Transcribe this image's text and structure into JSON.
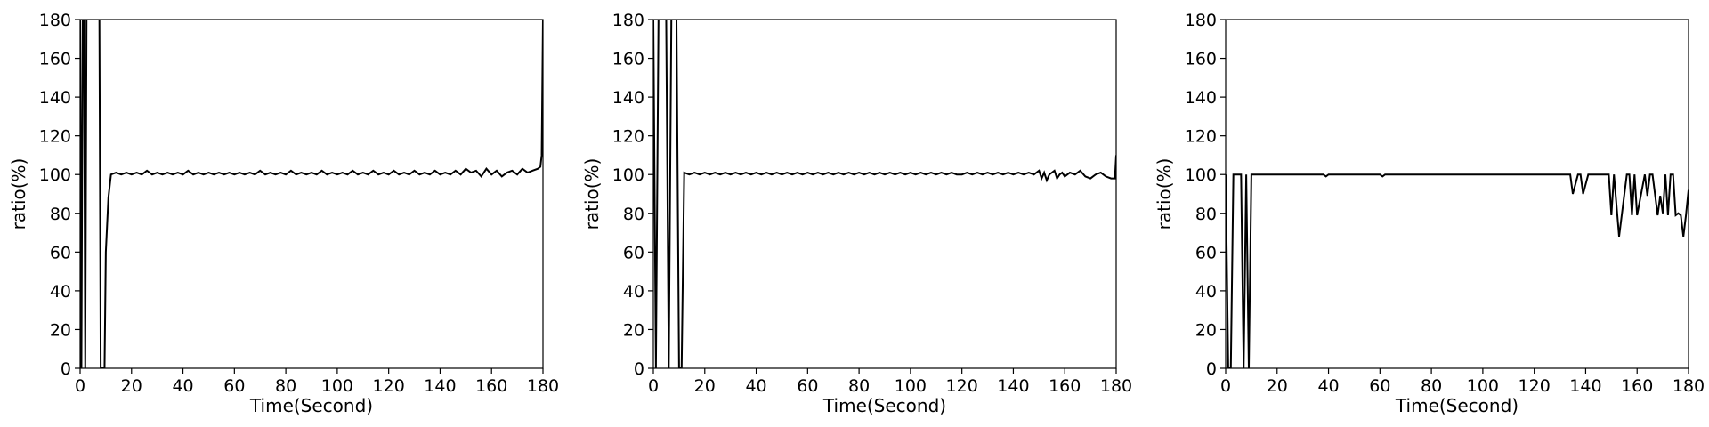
{
  "chart_data": [
    {
      "type": "line",
      "xlabel": "Time(Second)",
      "ylabel": "ratio(%)",
      "xlim": [
        0,
        180
      ],
      "ylim": [
        0,
        180
      ],
      "xticks": [
        0,
        20,
        40,
        60,
        80,
        100,
        120,
        140,
        160,
        180
      ],
      "yticks": [
        0,
        20,
        40,
        60,
        80,
        100,
        120,
        140,
        160,
        180
      ],
      "grid": false,
      "series": [
        {
          "color": "#000000",
          "x": [
            0,
            0.5,
            1,
            1.5,
            2,
            2.5,
            3,
            3.5,
            7,
            7.5,
            8,
            8.5,
            9,
            9.5,
            10,
            11,
            12,
            14,
            16,
            18,
            20,
            22,
            24,
            26,
            28,
            30,
            32,
            34,
            36,
            38,
            40,
            42,
            44,
            46,
            48,
            50,
            52,
            54,
            56,
            58,
            60,
            62,
            64,
            66,
            68,
            70,
            72,
            74,
            76,
            78,
            80,
            82,
            84,
            86,
            88,
            90,
            92,
            94,
            96,
            98,
            100,
            102,
            104,
            106,
            108,
            110,
            112,
            114,
            116,
            118,
            120,
            122,
            124,
            126,
            128,
            130,
            132,
            134,
            136,
            138,
            140,
            142,
            144,
            146,
            148,
            150,
            152,
            154,
            156,
            158,
            160,
            162,
            164,
            166,
            168,
            170,
            172,
            174,
            176,
            178,
            179,
            179.5,
            180
          ],
          "y": [
            180,
            0,
            180,
            180,
            0,
            180,
            180,
            180,
            180,
            180,
            0,
            0,
            0,
            0,
            60,
            88,
            100,
            101,
            100,
            101,
            100,
            101,
            100,
            102,
            100,
            101,
            100,
            101,
            100,
            101,
            100,
            102,
            100,
            101,
            100,
            101,
            100,
            101,
            100,
            101,
            100,
            101,
            100,
            101,
            100,
            102,
            100,
            101,
            100,
            101,
            100,
            102,
            100,
            101,
            100,
            101,
            100,
            102,
            100,
            101,
            100,
            101,
            100,
            102,
            100,
            101,
            100,
            102,
            100,
            101,
            100,
            102,
            100,
            101,
            100,
            102,
            100,
            101,
            100,
            102,
            100,
            101,
            100,
            102,
            100,
            103,
            101,
            102,
            99,
            103,
            100,
            102,
            99,
            101,
            102,
            100,
            103,
            101,
            102,
            103,
            104,
            110,
            180
          ]
        }
      ]
    },
    {
      "type": "line",
      "xlabel": "Time(Second)",
      "ylabel": "ratio(%)",
      "xlim": [
        0,
        180
      ],
      "ylim": [
        0,
        180
      ],
      "xticks": [
        0,
        20,
        40,
        60,
        80,
        100,
        120,
        140,
        160,
        180
      ],
      "yticks": [
        0,
        20,
        40,
        60,
        80,
        100,
        120,
        140,
        160,
        180
      ],
      "grid": false,
      "series": [
        {
          "color": "#000000",
          "x": [
            0,
            1,
            2,
            3,
            5,
            6,
            7,
            8,
            9,
            10,
            11,
            12,
            14,
            16,
            18,
            20,
            22,
            24,
            26,
            28,
            30,
            32,
            34,
            36,
            38,
            40,
            42,
            44,
            46,
            48,
            50,
            52,
            54,
            56,
            58,
            60,
            62,
            64,
            66,
            68,
            70,
            72,
            74,
            76,
            78,
            80,
            82,
            84,
            86,
            88,
            90,
            92,
            94,
            96,
            98,
            100,
            102,
            104,
            106,
            108,
            110,
            112,
            114,
            116,
            118,
            120,
            122,
            124,
            126,
            128,
            130,
            132,
            134,
            136,
            138,
            140,
            142,
            144,
            146,
            148,
            150,
            151,
            152,
            153,
            154,
            156,
            157,
            158,
            159,
            160,
            162,
            164,
            166,
            168,
            170,
            172,
            174,
            176,
            178,
            179,
            179.5,
            180
          ],
          "y": [
            180,
            0,
            180,
            180,
            180,
            0,
            180,
            180,
            180,
            0,
            0,
            101,
            100,
            101,
            100,
            101,
            100,
            101,
            100,
            101,
            100,
            101,
            100,
            101,
            100,
            101,
            100,
            101,
            100,
            101,
            100,
            101,
            100,
            101,
            100,
            101,
            100,
            101,
            100,
            101,
            100,
            101,
            100,
            101,
            100,
            101,
            100,
            101,
            100,
            101,
            100,
            101,
            100,
            101,
            100,
            101,
            100,
            101,
            100,
            101,
            100,
            101,
            100,
            101,
            100,
            100,
            101,
            100,
            101,
            100,
            101,
            100,
            101,
            100,
            101,
            100,
            101,
            100,
            101,
            100,
            102,
            98,
            101,
            97,
            100,
            102,
            98,
            100,
            101,
            99,
            101,
            100,
            102,
            99,
            98,
            100,
            101,
            99,
            98,
            98,
            98,
            110
          ]
        }
      ]
    },
    {
      "type": "line",
      "xlabel": "Time(Second)",
      "ylabel": "ratio(%)",
      "xlim": [
        0,
        180
      ],
      "ylim": [
        0,
        180
      ],
      "xticks": [
        0,
        20,
        40,
        60,
        80,
        100,
        120,
        140,
        160,
        180
      ],
      "yticks": [
        0,
        20,
        40,
        60,
        80,
        100,
        120,
        140,
        160,
        180
      ],
      "grid": false,
      "series": [
        {
          "color": "#000000",
          "x": [
            0,
            1,
            2,
            3,
            6,
            7,
            8,
            9,
            10,
            38,
            39,
            40,
            60,
            61,
            62,
            133,
            134,
            135,
            137,
            138,
            139,
            141,
            142,
            143,
            147,
            149,
            150,
            151,
            153,
            156,
            157,
            158,
            159,
            160,
            163,
            164,
            165,
            166,
            168,
            169,
            170,
            171,
            172,
            173,
            174,
            175,
            176,
            177,
            178,
            179,
            180
          ],
          "y": [
            100,
            0,
            0,
            100,
            100,
            0,
            100,
            0,
            100,
            100,
            99,
            100,
            100,
            99,
            100,
            100,
            100,
            90,
            100,
            100,
            90,
            100,
            100,
            100,
            100,
            100,
            79,
            100,
            68,
            100,
            100,
            79,
            100,
            79,
            100,
            89,
            100,
            100,
            79,
            89,
            80,
            100,
            79,
            100,
            100,
            79,
            80,
            79,
            68,
            79,
            92
          ]
        }
      ]
    }
  ]
}
